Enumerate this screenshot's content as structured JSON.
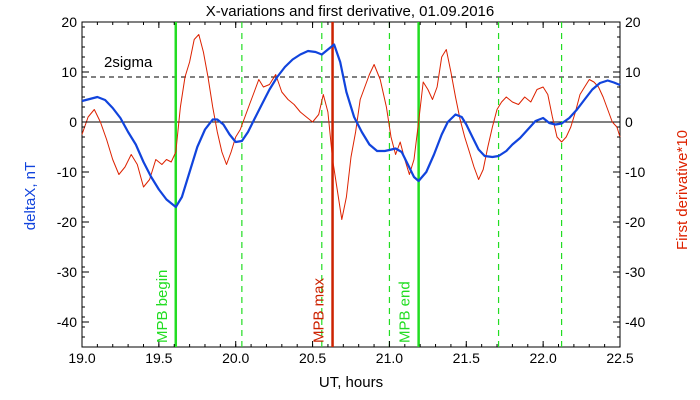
{
  "chart_data": {
    "type": "line",
    "title": "X-variations and first derivative, 01.09.2016",
    "xlabel": "UT, hours",
    "ylabel_left": "deltaX, nT",
    "ylabel_right": "First derivative*10",
    "xlim": [
      19.0,
      22.5
    ],
    "ylim": [
      -45,
      20
    ],
    "x_ticks": [
      19.0,
      19.5,
      20.0,
      20.5,
      21.0,
      21.5,
      22.0,
      22.5
    ],
    "x_tick_labels": [
      "19.0",
      "19.5",
      "20.0",
      "20.5",
      "21.0",
      "21.5",
      "22.0",
      "22.5"
    ],
    "y_ticks": [
      20,
      10,
      0,
      -10,
      -20,
      -30,
      -40
    ],
    "y_tick_labels": [
      "20",
      "10",
      "0",
      "-10",
      "-20",
      "-30",
      "-40"
    ],
    "reference_lines": [
      {
        "label": "2sigma",
        "y": 9,
        "style": "dashed",
        "color": "#000000"
      },
      {
        "label": "",
        "y": 0,
        "style": "solid",
        "color": "#000000"
      }
    ],
    "event_lines": [
      {
        "label": "MPB begin",
        "x": 19.61,
        "style": "solid",
        "color": "#22dd22"
      },
      {
        "label": "MPB max",
        "x": 20.63,
        "style": "solid",
        "color": "#cc2200"
      },
      {
        "label": "MPB end",
        "x": 21.19,
        "style": "solid",
        "color": "#22dd22"
      }
    ],
    "dashed_event_lines": {
      "color": "#22dd22",
      "x": [
        20.04,
        20.56,
        21.0,
        21.71,
        22.12
      ]
    },
    "series": [
      {
        "name": "deltaX, nT",
        "color": "#1144dd",
        "axis": "left",
        "x": [
          19.0,
          19.05,
          19.1,
          19.15,
          19.2,
          19.25,
          19.3,
          19.35,
          19.4,
          19.45,
          19.5,
          19.55,
          19.61,
          19.65,
          19.7,
          19.75,
          19.8,
          19.85,
          19.88,
          19.92,
          19.96,
          20.0,
          20.04,
          20.08,
          20.12,
          20.17,
          20.22,
          20.27,
          20.32,
          20.37,
          20.42,
          20.47,
          20.52,
          20.56,
          20.6,
          20.64,
          20.68,
          20.72,
          20.77,
          20.82,
          20.87,
          20.92,
          20.97,
          21.0,
          21.04,
          21.08,
          21.12,
          21.16,
          21.19,
          21.24,
          21.29,
          21.34,
          21.38,
          21.43,
          21.47,
          21.5,
          21.54,
          21.58,
          21.62,
          21.67,
          21.71,
          21.76,
          21.8,
          21.85,
          21.9,
          21.95,
          22.0,
          22.04,
          22.08,
          22.12,
          22.17,
          22.22,
          22.27,
          22.32,
          22.37,
          22.42,
          22.46,
          22.5
        ],
        "values": [
          4.2,
          4.6,
          5.0,
          4.4,
          2.8,
          0.8,
          -2.0,
          -4.5,
          -8.0,
          -11.0,
          -13.5,
          -15.5,
          -17.0,
          -15.0,
          -10.0,
          -5.0,
          -1.5,
          0.5,
          0.5,
          -0.5,
          -2.5,
          -4.0,
          -3.8,
          -2.0,
          0.5,
          3.5,
          6.5,
          9.0,
          11.0,
          12.5,
          13.5,
          14.2,
          14.0,
          13.5,
          14.5,
          15.5,
          12.0,
          6.0,
          1.0,
          -2.0,
          -4.5,
          -5.8,
          -5.8,
          -5.6,
          -5.3,
          -6.0,
          -8.5,
          -11.0,
          -11.8,
          -10.0,
          -6.5,
          -2.5,
          0.0,
          1.5,
          1.0,
          -0.5,
          -3.0,
          -5.5,
          -6.8,
          -7.0,
          -6.8,
          -5.8,
          -4.5,
          -3.2,
          -1.5,
          0.2,
          0.8,
          -0.2,
          -0.5,
          -0.3,
          0.8,
          2.5,
          4.5,
          6.5,
          7.8,
          8.3,
          7.9,
          7.4
        ]
      },
      {
        "name": "First derivative*10",
        "color": "#dd2200",
        "axis": "right",
        "x": [
          19.0,
          19.04,
          19.08,
          19.12,
          19.16,
          19.2,
          19.24,
          19.28,
          19.32,
          19.36,
          19.4,
          19.44,
          19.48,
          19.52,
          19.55,
          19.58,
          19.61,
          19.64,
          19.67,
          19.7,
          19.73,
          19.76,
          19.79,
          19.82,
          19.85,
          19.88,
          19.91,
          19.94,
          19.97,
          20.0,
          20.03,
          20.06,
          20.09,
          20.12,
          20.15,
          20.18,
          20.22,
          20.26,
          20.3,
          20.34,
          20.38,
          20.42,
          20.46,
          20.5,
          20.54,
          20.57,
          20.6,
          20.63,
          20.66,
          20.69,
          20.72,
          20.75,
          20.78,
          20.81,
          20.84,
          20.87,
          20.9,
          20.94,
          20.98,
          21.01,
          21.04,
          21.07,
          21.1,
          21.13,
          21.16,
          21.19,
          21.22,
          21.25,
          21.28,
          21.31,
          21.34,
          21.37,
          21.4,
          21.43,
          21.46,
          21.49,
          21.52,
          21.55,
          21.58,
          21.61,
          21.64,
          21.67,
          21.7,
          21.73,
          21.76,
          21.8,
          21.84,
          21.88,
          21.92,
          21.96,
          22.0,
          22.03,
          22.06,
          22.09,
          22.12,
          22.15,
          22.18,
          22.21,
          22.24,
          22.27,
          22.3,
          22.33,
          22.36,
          22.39,
          22.42,
          22.45,
          22.48,
          22.5
        ],
        "values": [
          -2.5,
          1.0,
          2.5,
          0.0,
          -3.5,
          -7.5,
          -10.5,
          -9.0,
          -6.5,
          -8.5,
          -13.0,
          -11.5,
          -7.5,
          -8.5,
          -7.5,
          -8.0,
          -6.0,
          3.0,
          9.0,
          12.0,
          16.5,
          17.5,
          14.0,
          9.0,
          3.0,
          -2.0,
          -6.0,
          -8.5,
          -6.0,
          -3.0,
          -1.5,
          1.0,
          3.5,
          6.0,
          8.5,
          7.0,
          7.5,
          9.5,
          6.0,
          4.5,
          3.5,
          2.0,
          1.0,
          0.0,
          1.5,
          5.5,
          2.0,
          -7.5,
          -13.5,
          -19.5,
          -15.0,
          -7.0,
          -2.0,
          4.5,
          7.0,
          9.5,
          11.5,
          8.5,
          3.0,
          -3.0,
          -6.5,
          -4.0,
          -7.5,
          -10.5,
          -7.5,
          0.0,
          8.0,
          6.5,
          4.5,
          7.0,
          13.0,
          14.5,
          10.0,
          5.0,
          0.5,
          -3.0,
          -6.0,
          -9.0,
          -11.5,
          -9.5,
          -5.0,
          -1.0,
          2.5,
          4.0,
          5.0,
          4.0,
          3.5,
          5.0,
          4.0,
          6.5,
          7.0,
          5.5,
          1.0,
          -3.0,
          -4.0,
          -3.0,
          -1.0,
          2.0,
          5.5,
          7.0,
          8.5,
          8.0,
          7.0,
          5.0,
          2.5,
          0.0,
          -1.0,
          -3.0
        ]
      }
    ],
    "legend": "none",
    "grid": false
  }
}
